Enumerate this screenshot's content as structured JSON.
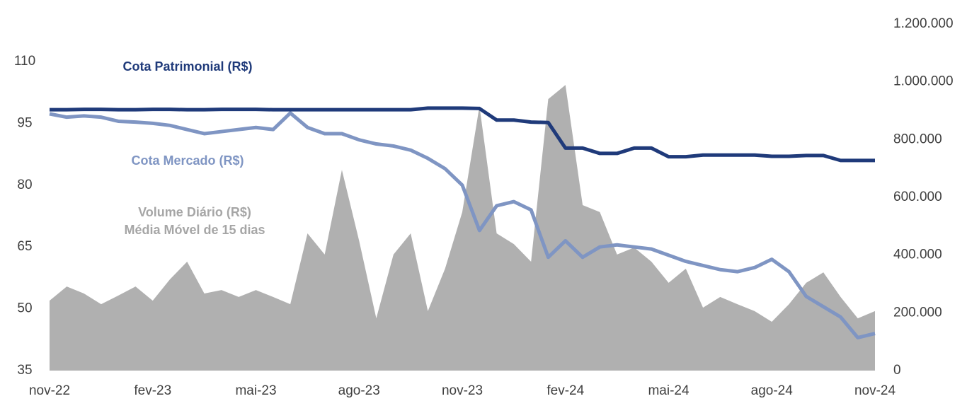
{
  "chart_data": {
    "type": "line",
    "categories": [
      "nov-22",
      null,
      null,
      null,
      null,
      null,
      "fev-23",
      null,
      null,
      null,
      null,
      null,
      "mai-23",
      null,
      null,
      null,
      null,
      null,
      "ago-23",
      null,
      null,
      null,
      null,
      null,
      "nov-23",
      null,
      null,
      null,
      null,
      null,
      "fev-24",
      null,
      null,
      null,
      null,
      null,
      "mai-24",
      null,
      null,
      null,
      null,
      null,
      "ago-24",
      null,
      null,
      null,
      null,
      null,
      "nov-24"
    ],
    "series": [
      {
        "name": "Volume Diário (R$)",
        "type": "area",
        "axis": "y2",
        "color": "#b0b0b0",
        "values": [
          242000,
          291000,
          267000,
          230000,
          260000,
          291000,
          242000,
          316000,
          377000,
          267000,
          279000,
          255000,
          279000,
          255000,
          230000,
          475000,
          402000,
          695000,
          450000,
          181000,
          402000,
          475000,
          206000,
          353000,
          549000,
          916000,
          475000,
          438000,
          377000,
          940000,
          989000,
          573000,
          549000,
          402000,
          426000,
          377000,
          304000,
          353000,
          218000,
          255000,
          230000,
          206000,
          169000,
          230000,
          304000,
          340000,
          255000,
          181000,
          206000
        ]
      },
      {
        "name": "Cota Mercado (R$)",
        "type": "line",
        "axis": "y",
        "color": "#7f95c3",
        "values": [
          97.3,
          96.5,
          96.8,
          96.5,
          95.5,
          95.3,
          95,
          94.5,
          93.5,
          92.5,
          93,
          93.5,
          94,
          93.5,
          97.5,
          94,
          92.5,
          92.5,
          91,
          90,
          89.5,
          88.5,
          86.5,
          84,
          80,
          69,
          75,
          76,
          74,
          62.5,
          66.5,
          62.5,
          65,
          65.5,
          65,
          64.5,
          63,
          61.5,
          60.5,
          59.5,
          59,
          60,
          62,
          59,
          53,
          50.5,
          48,
          43,
          44
        ]
      },
      {
        "name": "Cota Patrimonial (R$)",
        "type": "line",
        "axis": "y",
        "color": "#1f3a7a",
        "values": [
          98.3,
          98.3,
          98.4,
          98.4,
          98.3,
          98.3,
          98.4,
          98.4,
          98.3,
          98.3,
          98.4,
          98.4,
          98.4,
          98.3,
          98.3,
          98.3,
          98.3,
          98.3,
          98.3,
          98.3,
          98.3,
          98.3,
          98.7,
          98.7,
          98.7,
          98.6,
          95.8,
          95.8,
          95.3,
          95.2,
          89,
          89,
          87.7,
          87.7,
          89,
          89,
          86.9,
          86.9,
          87.3,
          87.3,
          87.3,
          87.3,
          87,
          87,
          87.2,
          87.2,
          86,
          86,
          86
        ]
      }
    ],
    "annotations": [
      "Média Móvel de 15 dias"
    ],
    "ylim": [
      35,
      110
    ],
    "yticks": [
      35,
      50,
      65,
      80,
      95,
      110
    ],
    "y2lim": [
      0,
      1200000
    ],
    "y2ticks": [
      0,
      {
        "value": 200000,
        "label": "200.000"
      },
      {
        "value": 400000,
        "label": "400.000"
      },
      {
        "value": 600000,
        "label": "600.000"
      },
      {
        "value": 800000,
        "label": "800.000"
      },
      {
        "value": 1000000,
        "label": "1.000.000"
      },
      {
        "value": 1200000,
        "label": "1.200.000"
      }
    ],
    "grid": false
  }
}
